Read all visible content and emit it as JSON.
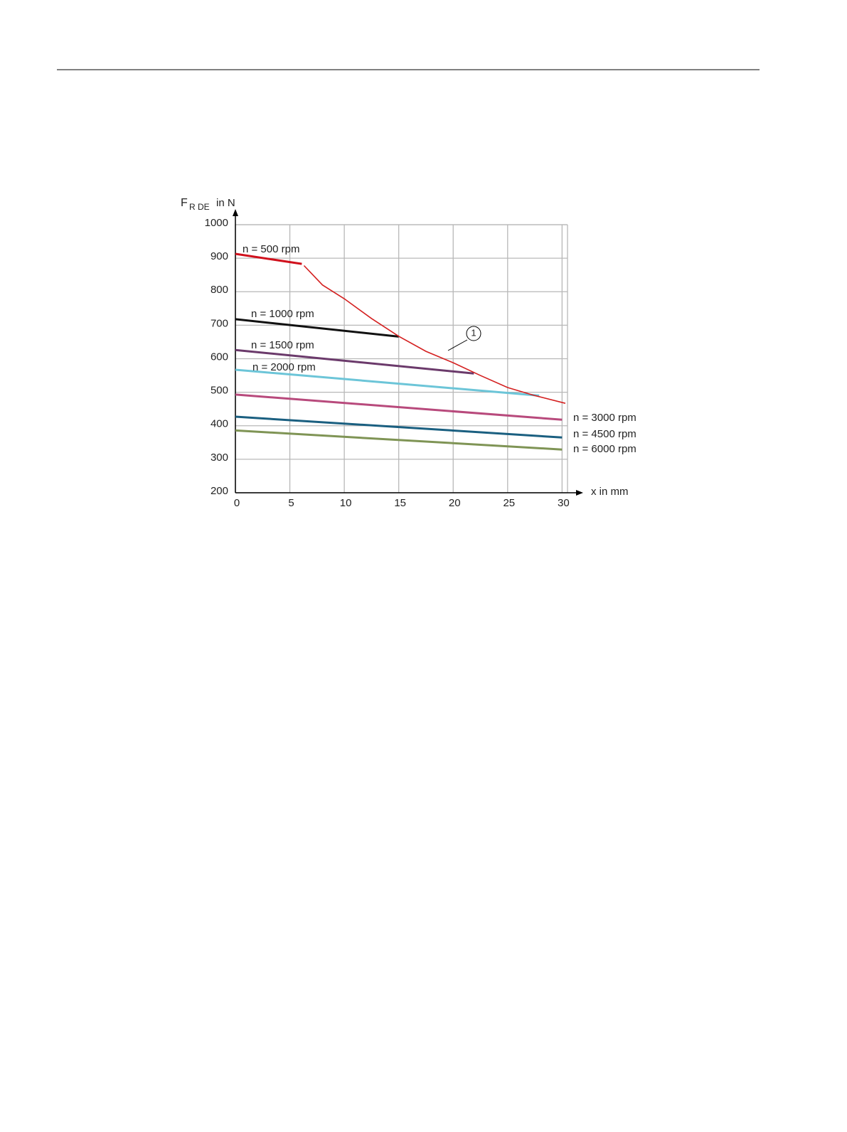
{
  "chart_data": {
    "type": "line",
    "ylabel": {
      "main": "F",
      "sub": "R DE",
      "unit": "in N"
    },
    "xlabel": "x in mm",
    "xlim": [
      0,
      30.5
    ],
    "ylim": [
      200,
      1000
    ],
    "xticks": [
      0,
      5,
      10,
      15,
      20,
      25,
      30
    ],
    "yticks": [
      200,
      300,
      400,
      500,
      600,
      700,
      800,
      900,
      1000
    ],
    "grid": true,
    "series": [
      {
        "name": "n = 500 rpm",
        "color": "#d0101c",
        "x": [
          0,
          6.1
        ],
        "values": [
          913,
          883
        ]
      },
      {
        "name": "n = 1000 rpm",
        "color": "#111111",
        "x": [
          0,
          15
        ],
        "values": [
          718,
          666
        ]
      },
      {
        "name": "n = 1500 rpm",
        "color": "#6b3a6b",
        "x": [
          0,
          21.9
        ],
        "values": [
          626,
          556
        ]
      },
      {
        "name": "n = 2000 rpm",
        "color": "#6cc5d8",
        "x": [
          0,
          27.9
        ],
        "values": [
          567,
          490
        ]
      },
      {
        "name": "n = 3000 rpm",
        "color": "#b84a7c",
        "x": [
          0,
          30
        ],
        "values": [
          493,
          418
        ]
      },
      {
        "name": "n = 4500 rpm",
        "color": "#1a5f80",
        "x": [
          0,
          30
        ],
        "values": [
          427,
          365
        ]
      },
      {
        "name": "n = 6000 rpm",
        "color": "#7f9455",
        "x": [
          0,
          30
        ],
        "values": [
          386,
          329
        ]
      }
    ],
    "limit_curve": {
      "annotation": "1",
      "color": "#d42020",
      "x": [
        6.3,
        8,
        10,
        12.5,
        15,
        17.5,
        20,
        22.5,
        25,
        27.5,
        30.3
      ],
      "values": [
        878,
        820,
        779,
        720,
        667,
        622,
        588,
        550,
        514,
        490,
        467
      ]
    }
  }
}
